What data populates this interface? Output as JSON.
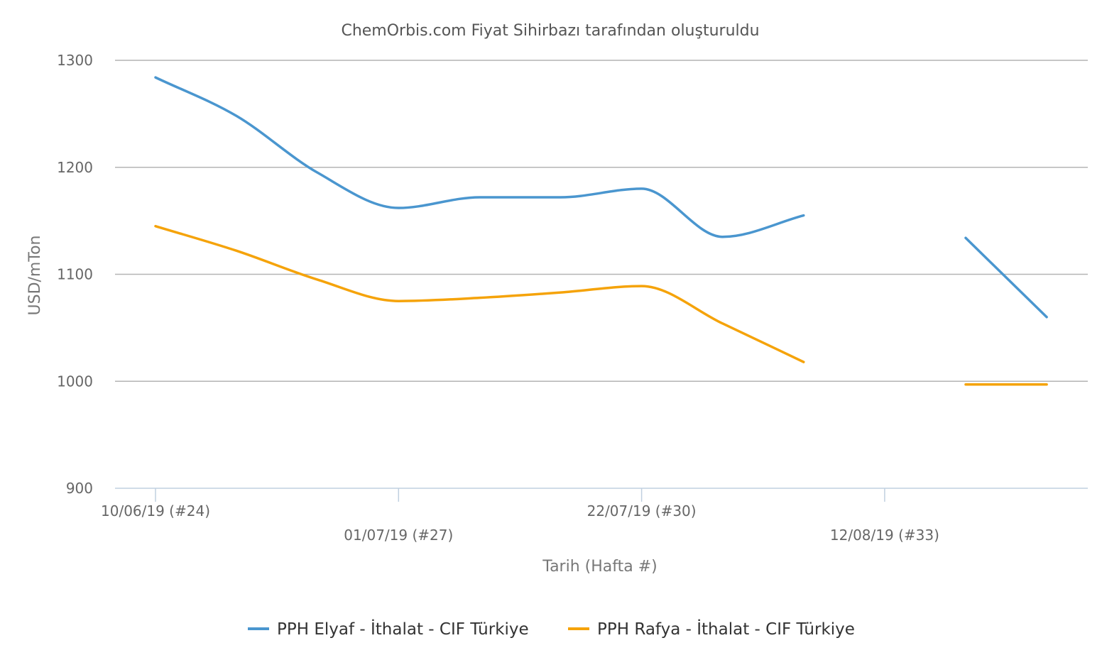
{
  "chart_data": {
    "type": "line",
    "title": "ChemOrbis.com Fiyat Sihirbazı tarafından oluşturuldu",
    "xlabel": "Tarih (Hafta #)",
    "ylabel": "USD/mTon",
    "ylim": [
      900,
      1300
    ],
    "yticks": [
      "1300",
      "1200",
      "1100",
      "1000",
      "900"
    ],
    "xticks": [
      "10/06/19 (#24)",
      "01/07/19 (#27)",
      "22/07/19 (#30)",
      "12/08/19 (#33)"
    ],
    "weeks": [
      24,
      25,
      26,
      27,
      28,
      29,
      30,
      31,
      32,
      33,
      34,
      35
    ],
    "grid": true,
    "legend_position": "bottom",
    "series": [
      {
        "name": "PPH Elyaf - İthalat - CIF Türkiye",
        "color": "#4a96cf",
        "values": [
          1284,
          1248,
          1195,
          1162,
          1172,
          1172,
          1180,
          1135,
          1155,
          null,
          1134,
          1060
        ]
      },
      {
        "name": "PPH Rafya - İthalat - CIF Türkiye",
        "color": "#f5a30a",
        "values": [
          1145,
          1122,
          1095,
          1075,
          1078,
          1083,
          1089,
          1054,
          1018,
          null,
          997,
          997
        ]
      }
    ]
  }
}
